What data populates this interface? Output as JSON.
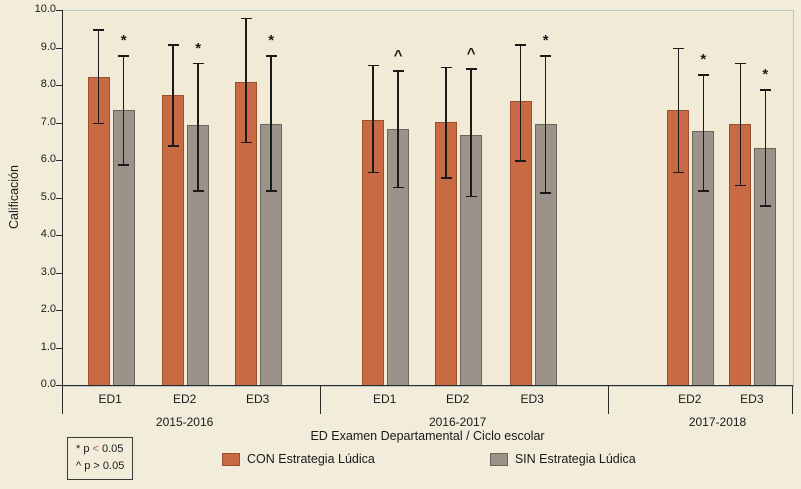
{
  "colors": {
    "page_bg": "#f2ecda",
    "plot_bg": "#f1ead6",
    "plot_border": "#b9c6c8",
    "axis": "#2b2b2b",
    "text": "#1a1a1a"
  },
  "chart_data": {
    "type": "bar",
    "title": "",
    "ylabel": "Calificación",
    "xlabel": "ED Examen Departamental / Ciclo escolar",
    "ylim": [
      0,
      10
    ],
    "ytick_labels": [
      "0.0",
      "1.0",
      "2.0",
      "3.0",
      "4.0",
      "5.0",
      "6.0",
      "7.0",
      "8.0",
      "9.0",
      "10.0"
    ],
    "grid": false,
    "legend_position": "bottom",
    "series": [
      {
        "name": "CON Estrategia Lúdica",
        "color": "#c86a44",
        "border": "#9a4f2d"
      },
      {
        "name": "SIN Estrategia Lúdica",
        "color": "#9b9289",
        "border": "#6b655c"
      }
    ],
    "groups": [
      {
        "label": "ED1",
        "cluster": "2015-2016",
        "center": 0.066,
        "marker": "*",
        "con": {
          "value": 8.25,
          "lo": 7.0,
          "hi": 9.5
        },
        "sin": {
          "value": 7.35,
          "lo": 5.9,
          "hi": 8.8
        }
      },
      {
        "label": "ED2",
        "cluster": "2015-2016",
        "center": 0.168,
        "marker": "*",
        "con": {
          "value": 7.75,
          "lo": 6.4,
          "hi": 9.1
        },
        "sin": {
          "value": 6.95,
          "lo": 5.2,
          "hi": 8.6
        }
      },
      {
        "label": "ED3",
        "cluster": "2015-2016",
        "center": 0.268,
        "marker": "*",
        "con": {
          "value": 8.1,
          "lo": 6.5,
          "hi": 9.8
        },
        "sin": {
          "value": 7.0,
          "lo": 5.2,
          "hi": 8.8
        }
      },
      {
        "label": "ED1",
        "cluster": "2016-2017",
        "center": 0.442,
        "marker": "^",
        "con": {
          "value": 7.1,
          "lo": 5.7,
          "hi": 8.55
        },
        "sin": {
          "value": 6.85,
          "lo": 5.3,
          "hi": 8.4
        }
      },
      {
        "label": "ED2",
        "cluster": "2016-2017",
        "center": 0.542,
        "marker": "^",
        "con": {
          "value": 7.05,
          "lo": 5.55,
          "hi": 8.5
        },
        "sin": {
          "value": 6.7,
          "lo": 5.05,
          "hi": 8.45
        }
      },
      {
        "label": "ED3",
        "cluster": "2016-2017",
        "center": 0.644,
        "marker": "*",
        "con": {
          "value": 7.6,
          "lo": 6.0,
          "hi": 9.1
        },
        "sin": {
          "value": 7.0,
          "lo": 5.15,
          "hi": 8.8
        }
      },
      {
        "label": "ED2",
        "cluster": "2017-2018",
        "center": 0.86,
        "marker": "*",
        "con": {
          "value": 7.35,
          "lo": 5.7,
          "hi": 9.0
        },
        "sin": {
          "value": 6.8,
          "lo": 5.2,
          "hi": 8.3
        }
      },
      {
        "label": "ED3",
        "cluster": "2017-2018",
        "center": 0.945,
        "marker": "*",
        "con": {
          "value": 7.0,
          "lo": 5.35,
          "hi": 8.6
        },
        "sin": {
          "value": 6.35,
          "lo": 4.8,
          "hi": 7.9
        }
      }
    ],
    "clusters": [
      {
        "label": "2015-2016",
        "center": 0.168
      },
      {
        "label": "2016-2017",
        "center": 0.542
      },
      {
        "label": "2017-2018",
        "center": 0.898
      }
    ],
    "axis_dividers": [
      0,
      0.353,
      0.748,
      1.0
    ],
    "notes": [
      {
        "pre": "* p ",
        "op": "<",
        "post": " 0.05",
        "op_color": "#c0504d"
      },
      {
        "pre": "^ p ",
        "op": ">",
        "post": " 0.05",
        "op_color": "#1a1a1a"
      }
    ]
  }
}
